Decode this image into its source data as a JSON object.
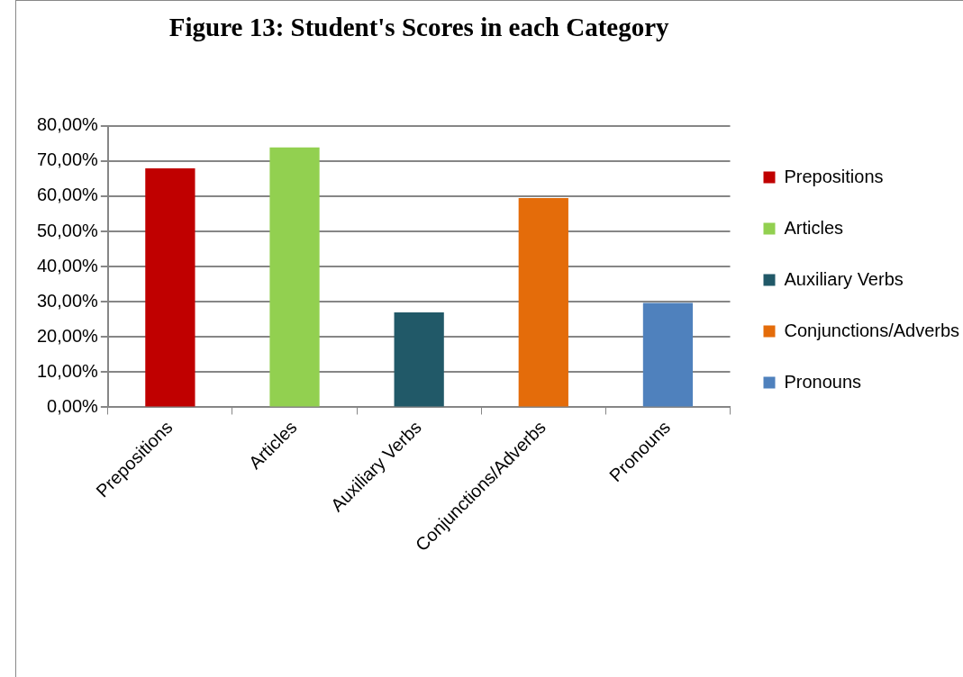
{
  "chart_data": {
    "type": "bar",
    "title": "Figure 13: Student's Scores in each Category",
    "categories": [
      "Prepositions",
      "Articles",
      "Auxiliary Verbs",
      "Conjunctions/Adverbs",
      "Pronouns"
    ],
    "series": [
      {
        "name": "Prepositions",
        "color": "#c00000",
        "values": [
          67.9,
          null,
          null,
          null,
          null
        ]
      },
      {
        "name": "Articles",
        "color": "#92d050",
        "values": [
          null,
          73.9,
          null,
          null,
          null
        ]
      },
      {
        "name": "Auxiliary Verbs",
        "color": "#215968",
        "values": [
          null,
          null,
          27.0,
          null,
          null
        ]
      },
      {
        "name": "Conjunctions/Adverbs",
        "color": "#e46c0a",
        "values": [
          null,
          null,
          null,
          59.5,
          null
        ]
      },
      {
        "name": "Pronouns",
        "color": "#4f81bd",
        "values": [
          null,
          null,
          null,
          null,
          29.7
        ]
      }
    ],
    "stacked": true,
    "ylim": [
      0,
      80
    ],
    "yticks": [
      {
        "value": 0,
        "label": "0,00%"
      },
      {
        "value": 10,
        "label": "10,00%"
      },
      {
        "value": 20,
        "label": "20,00%"
      },
      {
        "value": 30,
        "label": "30,00%"
      },
      {
        "value": 40,
        "label": "40,00%"
      },
      {
        "value": 50,
        "label": "50,00%"
      },
      {
        "value": 60,
        "label": "60,00%"
      },
      {
        "value": 70,
        "label": "70,00%"
      },
      {
        "value": 80,
        "label": "80,00%"
      }
    ],
    "grid": "y",
    "legend": "right"
  }
}
